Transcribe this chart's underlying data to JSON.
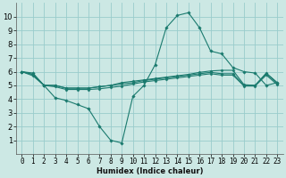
{
  "title": "",
  "xlabel": "Humidex (Indice chaleur)",
  "ylabel": "",
  "bg_color": "#cce8e4",
  "grid_color": "#99cccc",
  "line_color": "#1a7a6e",
  "x": [
    0,
    1,
    2,
    3,
    4,
    5,
    6,
    7,
    8,
    9,
    10,
    11,
    12,
    13,
    14,
    15,
    16,
    17,
    18,
    19,
    20,
    21,
    22,
    23
  ],
  "series": [
    [
      6.0,
      5.9,
      5.0,
      4.1,
      3.9,
      3.6,
      3.3,
      2.0,
      1.0,
      0.8,
      4.2,
      5.0,
      6.5,
      9.2,
      10.1,
      10.3,
      9.2,
      7.5,
      7.3,
      6.3,
      6.0,
      5.9,
      5.0,
      5.2
    ],
    [
      6.0,
      5.8,
      5.0,
      5.0,
      4.8,
      4.8,
      4.8,
      4.9,
      5.0,
      5.2,
      5.3,
      5.4,
      5.5,
      5.6,
      5.7,
      5.8,
      5.95,
      6.05,
      6.1,
      6.1,
      5.05,
      5.0,
      5.9,
      5.2
    ],
    [
      6.0,
      5.8,
      5.0,
      5.0,
      4.8,
      4.8,
      4.8,
      4.9,
      5.0,
      5.1,
      5.2,
      5.35,
      5.45,
      5.55,
      5.65,
      5.75,
      5.85,
      5.95,
      5.85,
      5.85,
      5.0,
      5.0,
      5.85,
      5.15
    ],
    [
      6.0,
      5.7,
      5.0,
      4.9,
      4.7,
      4.7,
      4.7,
      4.75,
      4.85,
      4.95,
      5.1,
      5.25,
      5.35,
      5.45,
      5.55,
      5.65,
      5.75,
      5.85,
      5.75,
      5.75,
      4.95,
      4.95,
      5.75,
      5.05
    ]
  ],
  "xlim": [
    -0.5,
    23.5
  ],
  "ylim": [
    0,
    11
  ],
  "yticks": [
    1,
    2,
    3,
    4,
    5,
    6,
    7,
    8,
    9,
    10
  ],
  "xticks": [
    0,
    1,
    2,
    3,
    4,
    5,
    6,
    7,
    8,
    9,
    10,
    11,
    12,
    13,
    14,
    15,
    16,
    17,
    18,
    19,
    20,
    21,
    22,
    23
  ],
  "xlabel_fontsize": 6.0,
  "tick_fontsize": 5.5,
  "ytick_fontsize": 6.0,
  "lw": 0.8,
  "markersize": 1.8
}
